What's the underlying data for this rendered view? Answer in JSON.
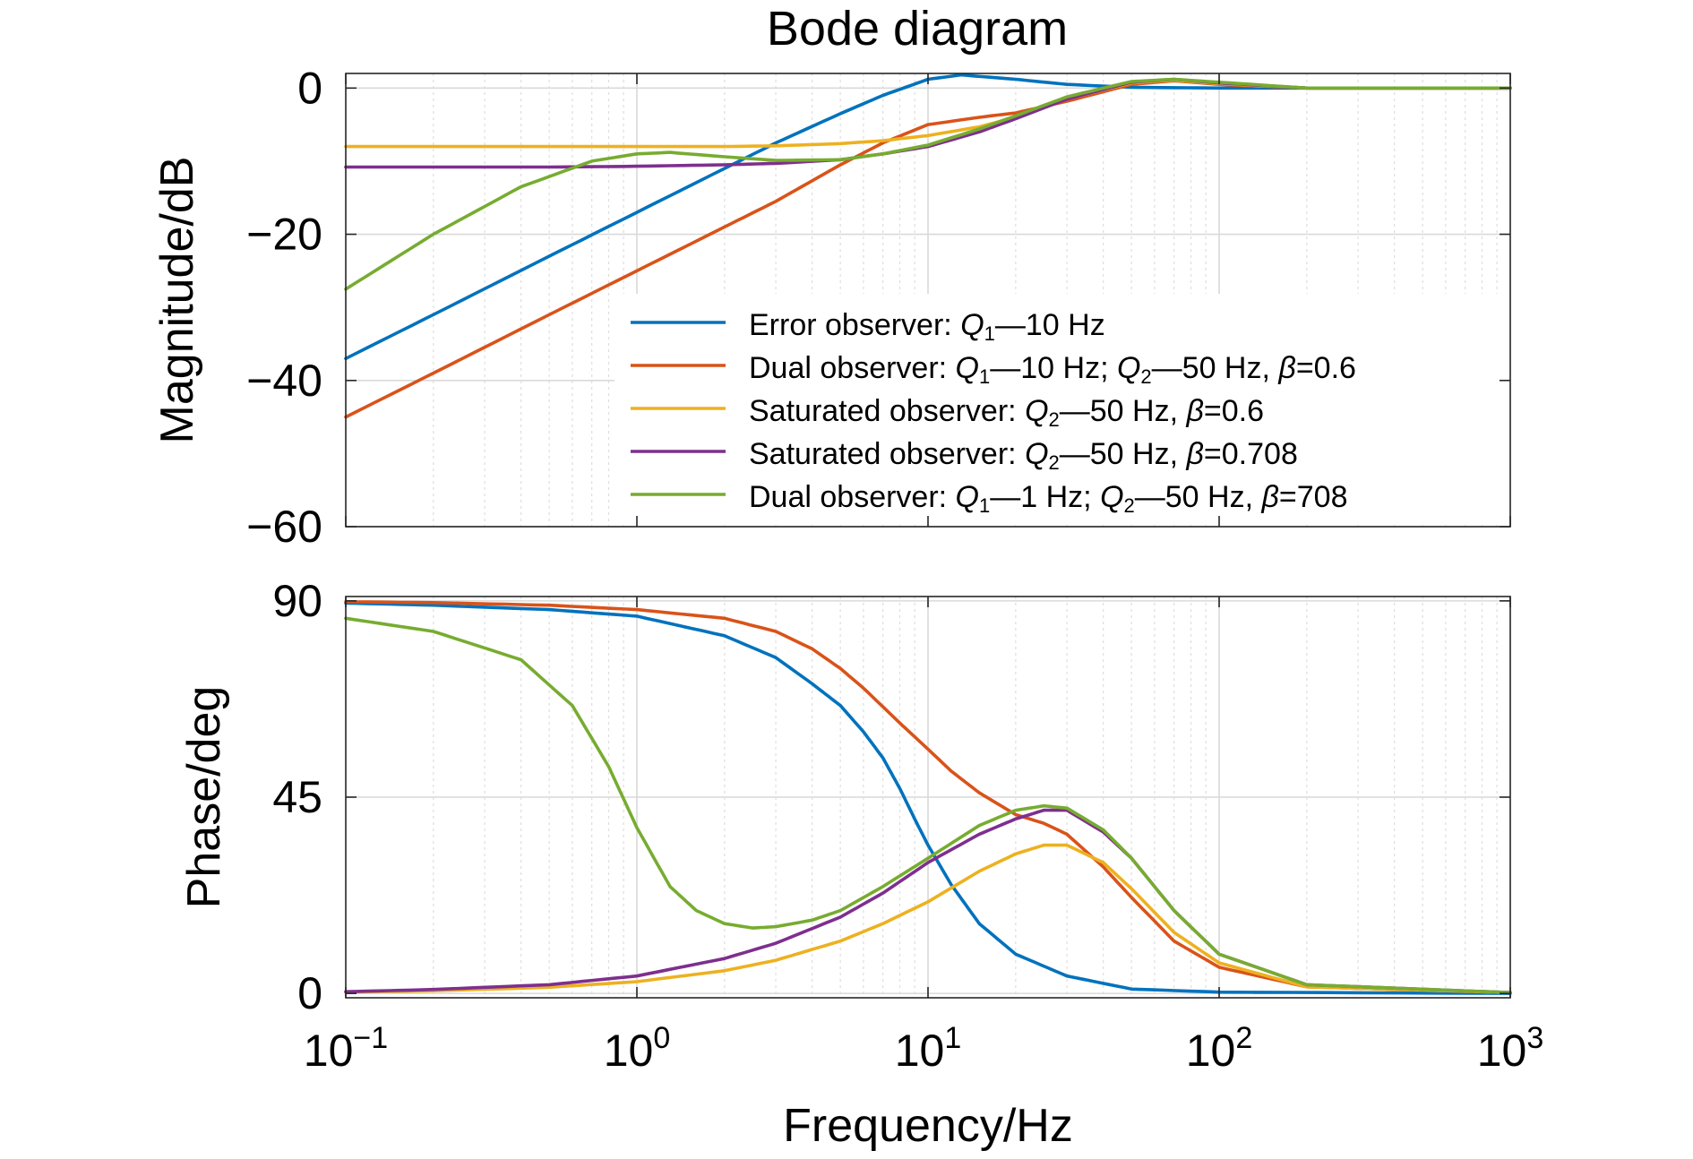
{
  "chart_data": [
    {
      "type": "line",
      "title": "Bode diagram",
      "xlabel": "",
      "ylabel": "Magnitude/dB",
      "xscale": "log",
      "xlim": [
        0.1,
        1000
      ],
      "ylim": [
        -60,
        2
      ],
      "yticks": [
        "0",
        "−20",
        "−40",
        "−60"
      ],
      "ytick_values": [
        0,
        -20,
        -40,
        -60
      ],
      "grid": true,
      "legend_position": "lower-right",
      "legend": [
        {
          "prefix": "Error observer: ",
          "q1": "Q",
          "q1sub": "1",
          "mid1": "—10 Hz",
          "q2": "",
          "q2sub": "",
          "mid2": "",
          "beta": "",
          "suffix": ""
        },
        {
          "prefix": "Dual observer: ",
          "q1": "Q",
          "q1sub": "1",
          "mid1": "—10 Hz; ",
          "q2": "Q",
          "q2sub": "2",
          "mid2": "—50 Hz, ",
          "beta": "β",
          "suffix": "=0.6"
        },
        {
          "prefix": "Saturated observer: ",
          "q1": "",
          "q1sub": "",
          "mid1": "",
          "q2": "Q",
          "q2sub": "2",
          "mid2": "—50 Hz, ",
          "beta": "β",
          "suffix": "=0.6"
        },
        {
          "prefix": "Saturated observer: ",
          "q1": "",
          "q1sub": "",
          "mid1": "",
          "q2": "Q",
          "q2sub": "2",
          "mid2": "—50 Hz, ",
          "beta": "β",
          "suffix": "=0.708"
        },
        {
          "prefix": "Dual observer: ",
          "q1": "Q",
          "q1sub": "1",
          "mid1": "—1 Hz; ",
          "q2": "Q",
          "q2sub": "2",
          "mid2": "—50 Hz, ",
          "beta": "β",
          "suffix": "=708"
        }
      ],
      "series": [
        {
          "color": "#0072BD",
          "x": [
            0.1,
            0.2,
            0.5,
            1,
            2,
            3,
            5,
            7,
            10,
            13,
            20,
            30,
            50,
            100,
            1000
          ],
          "y": [
            -37,
            -31,
            -23,
            -17,
            -11,
            -7.5,
            -3.5,
            -1,
            1.2,
            1.8,
            1.2,
            0.5,
            0.1,
            0,
            0
          ]
        },
        {
          "color": "#D95319",
          "x": [
            0.1,
            0.2,
            0.5,
            1,
            2,
            3,
            5,
            7,
            10,
            15,
            20,
            30,
            50,
            70,
            100,
            200,
            1000
          ],
          "y": [
            -45,
            -39,
            -31,
            -25,
            -19,
            -15.5,
            -10.5,
            -7.5,
            -5,
            -4,
            -3.4,
            -1.8,
            0.5,
            1,
            0.5,
            0,
            0
          ]
        },
        {
          "color": "#EDB120",
          "x": [
            0.1,
            0.5,
            1,
            2,
            3,
            5,
            7,
            10,
            15,
            20,
            30,
            50,
            70,
            100,
            200,
            1000
          ],
          "y": [
            -8,
            -8,
            -8,
            -8,
            -7.9,
            -7.6,
            -7.2,
            -6.5,
            -5.3,
            -4,
            -1.5,
            0.7,
            1.1,
            0.6,
            0,
            0
          ]
        },
        {
          "color": "#7E2F8E",
          "x": [
            0.1,
            0.5,
            1,
            2,
            3,
            5,
            7,
            10,
            15,
            20,
            30,
            50,
            70,
            100,
            200,
            1000
          ],
          "y": [
            -10.8,
            -10.8,
            -10.7,
            -10.5,
            -10.3,
            -9.8,
            -9,
            -8,
            -6,
            -4.2,
            -1.5,
            0.8,
            1.2,
            0.7,
            0,
            0
          ]
        },
        {
          "color": "#77AC30",
          "x": [
            0.1,
            0.2,
            0.4,
            0.7,
            1,
            1.3,
            2,
            3,
            5,
            7,
            10,
            15,
            20,
            30,
            50,
            70,
            100,
            200,
            1000
          ],
          "y": [
            -27.5,
            -20,
            -13.5,
            -10,
            -9,
            -8.8,
            -9.4,
            -9.9,
            -9.8,
            -9,
            -7.8,
            -5.6,
            -3.8,
            -1.2,
            0.9,
            1.2,
            0.8,
            0,
            0
          ]
        }
      ]
    },
    {
      "type": "line",
      "title": "",
      "xlabel": "Frequency/Hz",
      "ylabel": "Phase/deg",
      "xscale": "log",
      "xlim": [
        0.1,
        1000
      ],
      "ylim": [
        -1,
        91
      ],
      "yticks": [
        "0",
        "45",
        "90"
      ],
      "ytick_values": [
        0,
        45,
        90
      ],
      "xtick_values": [
        0.1,
        1,
        10,
        100,
        1000
      ],
      "xticks": [
        {
          "base": "10",
          "exp": "−1"
        },
        {
          "base": "10",
          "exp": "0"
        },
        {
          "base": "10",
          "exp": "1"
        },
        {
          "base": "10",
          "exp": "2"
        },
        {
          "base": "10",
          "exp": "3"
        }
      ],
      "grid": true,
      "series": [
        {
          "color": "#0072BD",
          "x": [
            0.1,
            0.2,
            0.5,
            1,
            2,
            3,
            4,
            5,
            6,
            7,
            8,
            9,
            10,
            12,
            15,
            20,
            30,
            50,
            100,
            1000
          ],
          "y": [
            89.5,
            89,
            88,
            86.5,
            82,
            77,
            71,
            66,
            60,
            54,
            47,
            40,
            34,
            25,
            16,
            9,
            4,
            1,
            0.3,
            0
          ]
        },
        {
          "color": "#D95319",
          "x": [
            0.1,
            0.2,
            0.5,
            1,
            2,
            3,
            4,
            5,
            6,
            8,
            10,
            12,
            15,
            20,
            25,
            30,
            40,
            50,
            70,
            100,
            200,
            1000
          ],
          "y": [
            89.8,
            89.6,
            89,
            88,
            86,
            83,
            79,
            74.5,
            70,
            62,
            56,
            51,
            46,
            41,
            39,
            36.5,
            29,
            22,
            12,
            6,
            1.5,
            0.2
          ]
        },
        {
          "color": "#EDB120",
          "x": [
            0.1,
            0.2,
            0.5,
            1,
            2,
            3,
            5,
            7,
            10,
            15,
            20,
            25,
            30,
            40,
            50,
            70,
            100,
            200,
            1000
          ],
          "y": [
            0.3,
            0.6,
            1.4,
            2.7,
            5.2,
            7.6,
            12,
            16,
            21,
            28,
            32,
            34,
            34,
            30,
            24,
            14,
            7,
            1.5,
            0.2
          ]
        },
        {
          "color": "#7E2F8E",
          "x": [
            0.1,
            0.2,
            0.5,
            1,
            2,
            3,
            5,
            7,
            10,
            15,
            20,
            25,
            30,
            40,
            50,
            70,
            100,
            200,
            1000
          ],
          "y": [
            0.4,
            0.9,
            2,
            4,
            8,
            11.5,
            17.5,
            23,
            30,
            36.5,
            40,
            42,
            42,
            37,
            31,
            19,
            9,
            2,
            0.2
          ]
        },
        {
          "color": "#77AC30",
          "x": [
            0.1,
            0.2,
            0.4,
            0.6,
            0.8,
            1,
            1.3,
            1.6,
            2,
            2.5,
            3,
            4,
            5,
            7,
            10,
            15,
            20,
            25,
            30,
            40,
            50,
            70,
            100,
            200,
            1000
          ],
          "y": [
            86,
            83,
            76.5,
            66,
            52,
            38,
            24.5,
            19,
            16,
            15,
            15.3,
            16.8,
            19,
            24.5,
            31,
            38.5,
            42,
            43,
            42.5,
            37.5,
            31,
            19,
            9,
            2,
            0.2
          ]
        }
      ]
    }
  ]
}
